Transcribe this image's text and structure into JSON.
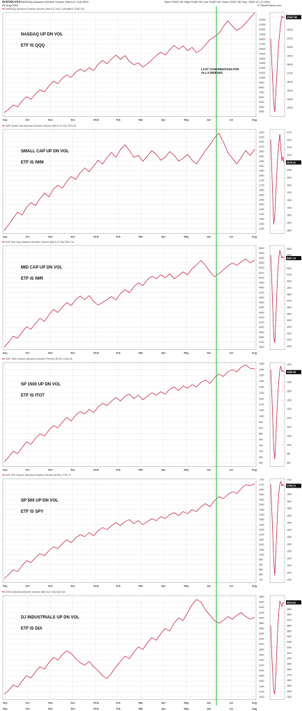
{
  "header": {
    "symbol": "$ADVDLVAS",
    "description": "NASDAQ Advance-Decline Volume (Net A-D Vol) INDX",
    "date": "25-Aug-2016",
    "ohlc": "Open 23467.80  High 23467.80  Low 23467.80  Close 23467.80  Chg -1539.14 (-6.16%)",
    "credit": "© StockCharts.com"
  },
  "annotations": {
    "vertical_line_label": "LAST CONFIRMATION FOR ALL 6 INDEXES",
    "vertical_line_color": "#22bb33"
  },
  "colors": {
    "series": "#cc2244",
    "grid": "#e6e6e6",
    "label_box": "#111111"
  },
  "x_axis_labels": [
    "Sep",
    "Oct",
    "Nov",
    "Dec",
    "2016",
    "Feb",
    "Mar",
    "Apr",
    "May",
    "Jun",
    "Jul",
    "Aug"
  ],
  "chart_data": [
    {
      "type": "line",
      "subtitle": "NASDAQ Advance-Decline Volume (Net A-D Vol) Cumulative 23467.80",
      "label_main": "NASDAQ UP DN VOL",
      "label_etf": "ETF IS QQQ",
      "last_value": "23467.80",
      "y_ticks": [
        "22000",
        "21000",
        "20000",
        "19000",
        "18000",
        "17000",
        "16000",
        "15000",
        "14000",
        "13000",
        "12000",
        "11000",
        "10000",
        "9000",
        "8000",
        "7000",
        "6000",
        "5000",
        "4000",
        "3000"
      ],
      "ylim": [
        2000,
        23500
      ],
      "inset_ticks": [
        "23467.80",
        "22000",
        "21000",
        "20000",
        "19000",
        "18000",
        "17000",
        "16000",
        "15000",
        "14000",
        "13000"
      ],
      "inset_ylim": [
        12000,
        24000
      ],
      "x_labels": [
        "Sep",
        "Oct",
        "Nov",
        "Dec",
        "2016",
        "Feb",
        "Mar",
        "Apr",
        "May",
        "Jun",
        "Jul",
        "Aug"
      ],
      "values": [
        2800,
        3500,
        4400,
        4000,
        5200,
        6100,
        5600,
        6700,
        7500,
        7100,
        8300,
        9300,
        8800,
        9900,
        10600,
        10100,
        11200,
        11800,
        11300,
        12100,
        11500,
        12800,
        13600,
        12900,
        13900,
        14700,
        13800,
        14600,
        13400,
        12700,
        13100,
        12200,
        12900,
        13700,
        14600,
        15300,
        14700,
        15800,
        16700,
        15900,
        16600,
        15600,
        16300,
        15200,
        15800,
        16800,
        17900,
        18500,
        19200,
        20600,
        21800,
        20700,
        19800,
        20400,
        21300,
        22400,
        23467
      ],
      "inset_values": [
        21000,
        18500,
        16000,
        13500,
        12500,
        14500,
        16800,
        18900,
        20600,
        21800,
        22900,
        23600,
        23400,
        23467
      ]
    },
    {
      "type": "line",
      "subtitle": "S&P Small Cap Advance-Decline Volume (Net A-D Vol) 2075.41",
      "label_main": "SMALL CAP UP DN VOL",
      "label_etf": "ETF IS IWM",
      "last_value": "2075.41",
      "y_ticks": [
        "2250",
        "2200",
        "2150",
        "2100",
        "2050",
        "2000",
        "1950",
        "1900",
        "1850",
        "1800",
        "1750",
        "1700",
        "1650",
        "1600",
        "1550",
        "1500",
        "1450",
        "1400",
        "1350",
        "1300",
        "1250"
      ],
      "ylim": [
        1200,
        2280
      ],
      "inset_ticks": [
        "2175",
        "2150",
        "2125",
        "2100",
        "2075.41",
        "2050",
        "2025",
        "2000",
        "1975",
        "1950",
        "1925",
        "1900",
        "1875",
        "1850"
      ],
      "inset_ylim": [
        1840,
        2185
      ],
      "x_labels": [
        "Sep",
        "Oct",
        "Nov",
        "Dec",
        "2016",
        "Feb",
        "Mar",
        "Apr",
        "May",
        "Jun",
        "Jul",
        "Aug"
      ],
      "values": [
        1230,
        1290,
        1360,
        1420,
        1390,
        1470,
        1520,
        1490,
        1560,
        1620,
        1580,
        1660,
        1700,
        1670,
        1740,
        1790,
        1760,
        1830,
        1880,
        1840,
        1900,
        1960,
        1920,
        1990,
        2040,
        1990,
        2070,
        2120,
        2060,
        1990,
        2010,
        1950,
        2000,
        2060,
        2020,
        1960,
        1990,
        2050,
        2010,
        1950,
        1980,
        2020,
        1960,
        1920,
        1990,
        2060,
        2120,
        2190,
        2240,
        2150,
        2040,
        1980,
        1920,
        1990,
        2060,
        2010,
        2075
      ],
      "inset_values": [
        2150,
        2060,
        1960,
        1870,
        1900,
        1970,
        2040,
        2100,
        2140,
        2170,
        2120,
        2080,
        2095,
        2075
      ]
    },
    {
      "type": "line",
      "subtitle": "S&P Mid Cap Advance-Decline Volume (Net A-D Vol) 5357.24",
      "label_main": "MID CAP UP DN VOL",
      "label_etf": "ETF IS IWR",
      "last_value": "5357.24",
      "y_ticks": [
        "5600",
        "5500",
        "5400",
        "5300",
        "5200",
        "5100",
        "5000",
        "4900",
        "4800",
        "4700",
        "4600",
        "4500",
        "4400",
        "4300",
        "4200",
        "4100",
        "4000",
        "3900",
        "3800",
        "3700",
        "3600"
      ],
      "ylim": [
        3550,
        5650
      ],
      "inset_ticks": [
        "5500",
        "5400",
        "5357.24",
        "5200",
        "5100",
        "5000",
        "4900",
        "4800",
        "4700",
        "4600",
        "4500",
        "4400",
        "4300",
        "4200",
        "4100",
        "4000"
      ],
      "inset_ylim": [
        3950,
        5550
      ],
      "x_labels": [
        "Sep",
        "Oct",
        "Nov",
        "Dec",
        "2016",
        "Feb",
        "Mar",
        "Apr",
        "May",
        "Jun",
        "Jul",
        "Aug"
      ],
      "values": [
        3600,
        3700,
        3820,
        3780,
        3900,
        4010,
        3960,
        4080,
        4180,
        4120,
        4250,
        4360,
        4300,
        4410,
        4500,
        4440,
        4560,
        4630,
        4560,
        4640,
        4520,
        4450,
        4500,
        4560,
        4620,
        4550,
        4680,
        4760,
        4700,
        4820,
        4900,
        4840,
        4960,
        5030,
        4980,
        5060,
        5000,
        5080,
        4980,
        5040,
        5120,
        5060,
        5180,
        5260,
        5350,
        5250,
        5120,
        5020,
        5080,
        5160,
        5240,
        5300,
        5250,
        5320,
        5380,
        5300,
        5357
      ],
      "inset_values": [
        5400,
        5050,
        4600,
        4150,
        4050,
        4400,
        4800,
        5150,
        5350,
        5480,
        5420,
        5360,
        5380,
        5357
      ]
    },
    {
      "type": "line",
      "subtitle": "S&P 1500 Volume Advance-Decline Percent (EOD) 1406.28",
      "label_main": "SP 1500 UP DN VOL",
      "label_etf": "ETF IS ITOT",
      "last_value": "1406.28",
      "y_ticks": [
        "1450",
        "1400",
        "1350",
        "1300",
        "1250",
        "1200",
        "1150",
        "1100",
        "1050",
        "1000",
        "950",
        "900",
        "850",
        "800",
        "750",
        "700",
        "650",
        "600"
      ],
      "ylim": [
        570,
        1460
      ],
      "inset_ticks": [
        "1450",
        "1406.28",
        "1350",
        "1300",
        "1250",
        "1200",
        "1150",
        "1100",
        "1050",
        "1000",
        "950",
        "900"
      ],
      "inset_ylim": [
        880,
        1460
      ],
      "x_labels": [
        "Sep",
        "Oct",
        "Nov",
        "Dec",
        "2016",
        "Feb",
        "Mar",
        "Apr",
        "May",
        "Jun",
        "Jul",
        "Aug"
      ],
      "values": [
        610,
        650,
        700,
        680,
        730,
        780,
        760,
        810,
        850,
        830,
        880,
        920,
        900,
        950,
        990,
        960,
        1010,
        1040,
        1020,
        1060,
        1030,
        1080,
        1110,
        1090,
        1130,
        1160,
        1130,
        1170,
        1190,
        1150,
        1180,
        1140,
        1170,
        1200,
        1180,
        1210,
        1190,
        1230,
        1250,
        1220,
        1260,
        1240,
        1270,
        1250,
        1290,
        1310,
        1280,
        1330,
        1360,
        1340,
        1380,
        1400,
        1380,
        1420,
        1440,
        1410,
        1406
      ],
      "inset_values": [
        1420,
        1300,
        1150,
        980,
        920,
        1030,
        1160,
        1280,
        1360,
        1420,
        1440,
        1410,
        1415,
        1406
      ]
    },
    {
      "type": "line",
      "subtitle": "S&P 500 Volume Advance-Decline Percent (EOD) 1709.72",
      "label_main": "SP 500 UP DN VOL",
      "label_etf": "ETF IS SPY",
      "last_value": "1709.72",
      "y_ticks": [
        "1750",
        "1700",
        "1650",
        "1600",
        "1550",
        "1500",
        "1450",
        "1400",
        "1350",
        "1300",
        "1250",
        "1200",
        "1150",
        "1100",
        "1050",
        "1000",
        "950",
        "900",
        "850",
        "800",
        "750"
      ],
      "ylim": [
        720,
        1760
      ],
      "inset_ticks": [
        "1750",
        "1709.72",
        "1650",
        "1600",
        "1550",
        "1500",
        "1450",
        "1400",
        "1350",
        "1300",
        "1250",
        "1200",
        "1150",
        "1100",
        "1050"
      ],
      "inset_ylim": [
        1030,
        1760
      ],
      "x_labels": [
        "Sep",
        "Oct",
        "Nov",
        "Dec",
        "2016",
        "Feb",
        "Mar",
        "Apr",
        "May",
        "Jun",
        "Jul",
        "Aug"
      ],
      "values": [
        760,
        800,
        850,
        830,
        890,
        940,
        920,
        970,
        1010,
        990,
        1040,
        1080,
        1060,
        1110,
        1150,
        1120,
        1170,
        1200,
        1180,
        1220,
        1190,
        1240,
        1270,
        1250,
        1290,
        1320,
        1290,
        1330,
        1350,
        1310,
        1340,
        1300,
        1330,
        1360,
        1340,
        1380,
        1360,
        1400,
        1420,
        1390,
        1430,
        1410,
        1450,
        1430,
        1480,
        1510,
        1480,
        1540,
        1580,
        1560,
        1600,
        1630,
        1610,
        1660,
        1700,
        1690,
        1709
      ],
      "inset_values": [
        1720,
        1560,
        1380,
        1180,
        1080,
        1230,
        1400,
        1560,
        1660,
        1720,
        1740,
        1710,
        1720,
        1709
      ]
    },
    {
      "type": "line",
      "subtitle": "DOW Advance-Decline Volume (Net A-D Vol) 4024.62",
      "label_main": "DJ INDUSTRIALS UP DN VOL",
      "label_etf": "ETF IS DIA",
      "last_value": "4024.62",
      "y_ticks": [
        "4800",
        "4600",
        "4400",
        "4200",
        "4000",
        "3800",
        "3600",
        "3400",
        "3200",
        "3000",
        "2800",
        "2600",
        "2400",
        "2200",
        "2000",
        "1800",
        "1600",
        "1400",
        "1200",
        "1000"
      ],
      "ylim": [
        900,
        4850
      ],
      "inset_ticks": [
        "4024.62",
        "3900",
        "3800",
        "3700",
        "3600",
        "3500",
        "3400",
        "3300",
        "3200",
        "3100",
        "3000",
        "2900",
        "2800",
        "2700",
        "2600",
        "2500",
        "2400",
        "2300"
      ],
      "inset_ylim": [
        2250,
        4150
      ],
      "x_labels": [
        "Sep",
        "Oct",
        "Nov",
        "Dec",
        "2016",
        "Feb",
        "Mar",
        "Apr",
        "May",
        "Jun",
        "Jul",
        "Aug"
      ],
      "values": [
        1100,
        1250,
        1450,
        1380,
        1600,
        1800,
        1720,
        1950,
        2150,
        2050,
        2300,
        2500,
        2400,
        2600,
        2750,
        2650,
        2450,
        2300,
        2200,
        2350,
        2150,
        2000,
        1800,
        1700,
        1900,
        2150,
        2350,
        2550,
        2450,
        2700,
        2900,
        2800,
        3050,
        3250,
        3150,
        3400,
        3600,
        3500,
        3800,
        4000,
        3900,
        4200,
        4500,
        4700,
        4600,
        4300,
        4100,
        3900,
        3800,
        3900,
        4050,
        3950,
        4100,
        4200,
        4050,
        3950,
        4024
      ],
      "inset_values": [
        3600,
        3100,
        2700,
        2400,
        2350,
        2700,
        3150,
        3550,
        3850,
        4050,
        4000,
        3950,
        4010,
        4024
      ]
    }
  ]
}
